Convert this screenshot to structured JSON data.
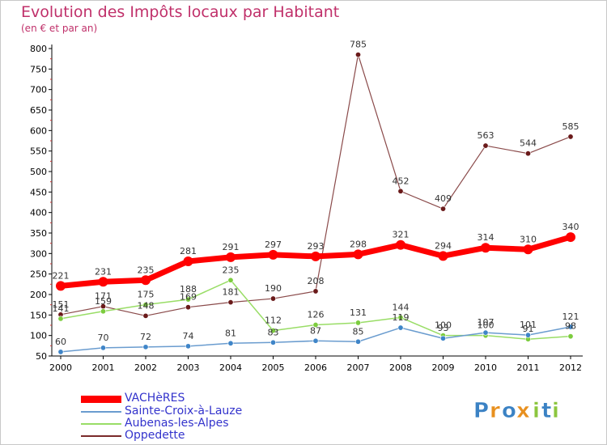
{
  "header": {
    "title": "Evolution des Impôts locaux par Habitant",
    "subtitle": "(en € et par an)"
  },
  "chart_data": {
    "type": "line",
    "title": "Evolution des Impôts locaux par Habitant",
    "subtitle": "(en € et par an)",
    "x": [
      "2000",
      "2001",
      "2002",
      "2003",
      "2004",
      "2005",
      "2006",
      "2007",
      "2008",
      "2009",
      "2010",
      "2011",
      "2012"
    ],
    "ylim": [
      50,
      800
    ],
    "yticks": [
      50,
      100,
      150,
      200,
      250,
      300,
      350,
      400,
      450,
      500,
      550,
      600,
      650,
      700,
      750,
      800
    ],
    "grid": false,
    "legend_position": "bottom-left",
    "series": [
      {
        "name": "VACHèRES",
        "color": "#ff0000",
        "values": [
          221,
          231,
          235,
          281,
          291,
          297,
          293,
          298,
          321,
          294,
          314,
          310,
          340
        ]
      },
      {
        "name": "Sainte-Croix-à-Lauze",
        "color": "#6a9ccf",
        "values": [
          60,
          70,
          72,
          74,
          81,
          83,
          87,
          85,
          119,
          93,
          107,
          101,
          121
        ]
      },
      {
        "name": "Aubenas-les-Alpes",
        "color": "#99dd66",
        "values": [
          141,
          159,
          175,
          188,
          235,
          112,
          126,
          131,
          144,
          100,
          100,
          91,
          98
        ]
      },
      {
        "name": "Oppedette",
        "color": "#7a2a2a",
        "values": [
          151,
          171,
          148,
          169,
          181,
          190,
          208,
          785,
          452,
          409,
          563,
          544,
          585
        ]
      }
    ]
  },
  "legend": {
    "items": [
      "VACHèRES",
      "Sainte-Croix-à-Lauze",
      "Aubenas-les-Alpes",
      "Oppedette"
    ]
  },
  "logo": {
    "text": "Proxiti",
    "letters": [
      "P",
      "r",
      "o",
      "x",
      "i",
      "t",
      "i"
    ],
    "colors": [
      "#3b82c4",
      "#e8901f",
      "#3b82c4",
      "#e8901f",
      "#8cc63f",
      "#3b82c4",
      "#8cc63f"
    ]
  }
}
